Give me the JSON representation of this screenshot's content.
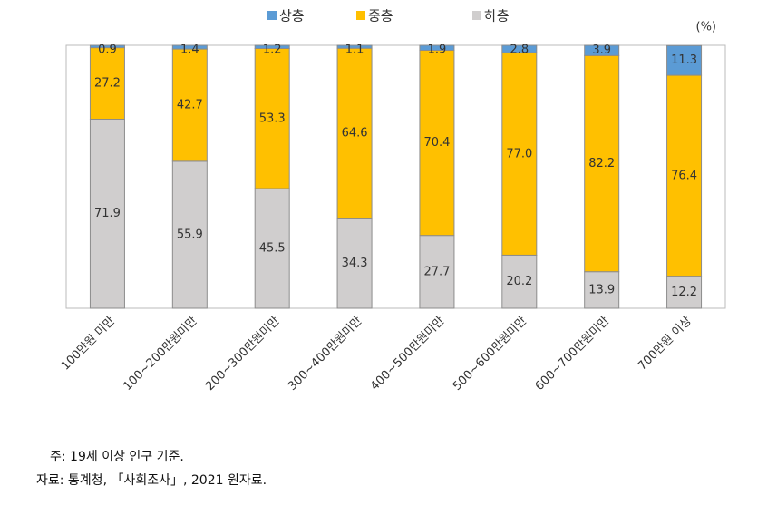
{
  "chart_data": {
    "type": "stacked_bar",
    "unit_label": "(%)",
    "categories": [
      "100만원 미만",
      "100~200만원미만",
      "200~300만원미만",
      "300~400만원미만",
      "400~500만원미만",
      "500~600만원미만",
      "600~700만원미만",
      "700만원 이상"
    ],
    "series": [
      {
        "name": "상층",
        "color": "#5b9bd5",
        "values": [
          0.9,
          1.4,
          1.2,
          1.1,
          1.9,
          2.8,
          3.9,
          11.3
        ]
      },
      {
        "name": "중층",
        "color": "#ffc000",
        "values": [
          27.2,
          42.7,
          53.3,
          64.6,
          70.4,
          77,
          82.2,
          76.4
        ],
        "value_labels": [
          "27.2",
          "42.7",
          "53.3",
          "64.6",
          "70.4",
          "77.0",
          "82.2",
          "76.4"
        ]
      },
      {
        "name": "하층",
        "color": "#d0cece",
        "values": [
          71.9,
          55.9,
          45.5,
          34.3,
          27.7,
          20.2,
          13.9,
          12.2
        ]
      }
    ],
    "ylim": [
      0,
      100
    ],
    "notes": [
      "주: 19세 이상 인구 기준.",
      "자료: 통계청, 「사회조사」, 2021 원자료."
    ]
  }
}
